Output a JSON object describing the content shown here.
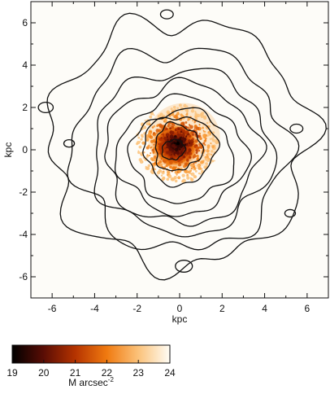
{
  "chart_data": {
    "type": "heatmap",
    "title": "",
    "xlabel": "kpc",
    "ylabel": "kpc",
    "xlim": [
      -7,
      7
    ],
    "ylim": [
      -7,
      7
    ],
    "x_ticks": [
      -6,
      -4,
      -2,
      0,
      2,
      4,
      6
    ],
    "y_ticks": [
      -6,
      -4,
      -2,
      0,
      2,
      4,
      6
    ],
    "colorbar": {
      "label": "M arcsec",
      "label_superscript": "-2",
      "range": [
        19,
        24
      ],
      "ticks": [
        19,
        20,
        21,
        22,
        23,
        24
      ],
      "colors": [
        "#000000",
        "#5a0d05",
        "#b53300",
        "#f07a10",
        "#fbc27a",
        "#fffdf5"
      ]
    },
    "color_image": {
      "description_units": "surface brightness, M arcsec^-2",
      "center_kpc": [
        0,
        0.3
      ],
      "extent_kpc": 3
    },
    "contours": {
      "count": 9,
      "center_kpc": [
        0,
        0
      ]
    }
  }
}
